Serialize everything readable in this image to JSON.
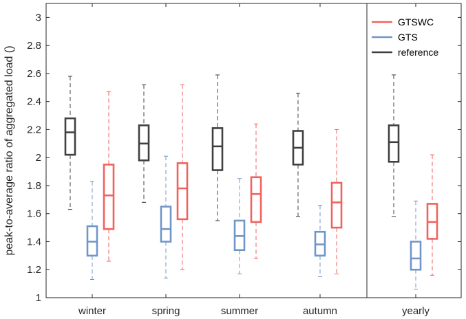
{
  "chart_data": {
    "type": "box",
    "ylabel": "peak-to-average ratio of aggregated load ()",
    "ylim": [
      1,
      3.1
    ],
    "yticks": [
      1,
      1.2,
      1.4,
      1.6,
      1.8,
      2,
      2.2,
      2.4,
      2.6,
      2.8,
      3
    ],
    "categories": [
      "winter",
      "spring",
      "summer",
      "autumn",
      "yearly"
    ],
    "divider_after_category": "autumn",
    "legend": {
      "position": "top-right",
      "order": [
        "GTSWC",
        "GTS",
        "reference"
      ]
    },
    "series": [
      {
        "name": "reference",
        "color": "#404040",
        "boxes": [
          {
            "whisker_low": 1.63,
            "q1": 2.02,
            "median": 2.18,
            "q3": 2.28,
            "whisker_high": 2.58
          },
          {
            "whisker_low": 1.68,
            "q1": 1.98,
            "median": 2.1,
            "q3": 2.23,
            "whisker_high": 2.52
          },
          {
            "whisker_low": 1.55,
            "q1": 1.91,
            "median": 2.08,
            "q3": 2.21,
            "whisker_high": 2.59
          },
          {
            "whisker_low": 1.58,
            "q1": 1.95,
            "median": 2.07,
            "q3": 2.19,
            "whisker_high": 2.46
          },
          {
            "whisker_low": 1.58,
            "q1": 1.97,
            "median": 2.11,
            "q3": 2.23,
            "whisker_high": 2.59
          }
        ]
      },
      {
        "name": "GTS",
        "color": "#7096c8",
        "boxes": [
          {
            "whisker_low": 1.13,
            "q1": 1.3,
            "median": 1.4,
            "q3": 1.51,
            "whisker_high": 1.83
          },
          {
            "whisker_low": 1.14,
            "q1": 1.4,
            "median": 1.49,
            "q3": 1.65,
            "whisker_high": 2.01
          },
          {
            "whisker_low": 1.17,
            "q1": 1.34,
            "median": 1.44,
            "q3": 1.55,
            "whisker_high": 1.85
          },
          {
            "whisker_low": 1.15,
            "q1": 1.3,
            "median": 1.38,
            "q3": 1.47,
            "whisker_high": 1.66
          },
          {
            "whisker_low": 1.06,
            "q1": 1.2,
            "median": 1.28,
            "q3": 1.4,
            "whisker_high": 1.69
          }
        ]
      },
      {
        "name": "GTSWC",
        "color": "#f0625e",
        "boxes": [
          {
            "whisker_low": 1.26,
            "q1": 1.49,
            "median": 1.73,
            "q3": 1.95,
            "whisker_high": 2.47
          },
          {
            "whisker_low": 1.2,
            "q1": 1.56,
            "median": 1.78,
            "q3": 1.96,
            "whisker_high": 2.52
          },
          {
            "whisker_low": 1.28,
            "q1": 1.54,
            "median": 1.74,
            "q3": 1.86,
            "whisker_high": 2.24
          },
          {
            "whisker_low": 1.17,
            "q1": 1.5,
            "median": 1.68,
            "q3": 1.82,
            "whisker_high": 2.2
          },
          {
            "whisker_low": 1.16,
            "q1": 1.42,
            "median": 1.54,
            "q3": 1.67,
            "whisker_high": 2.02
          }
        ]
      }
    ]
  }
}
